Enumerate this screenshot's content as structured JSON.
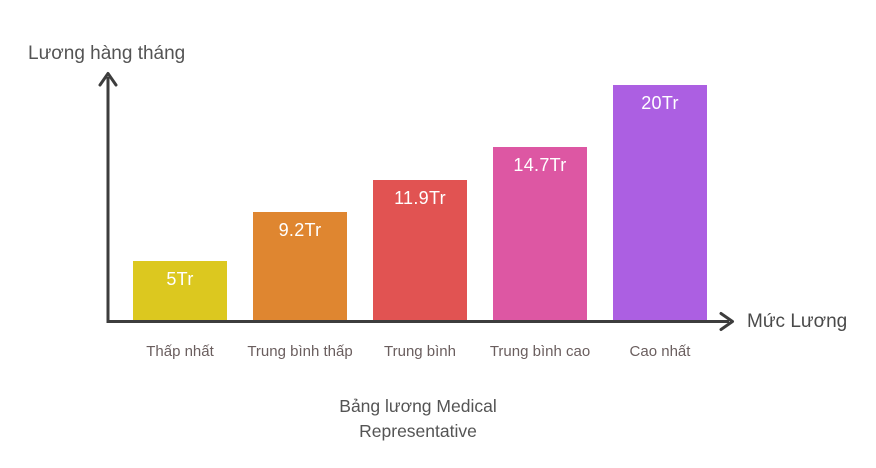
{
  "colors": {
    "background": "#ffffff",
    "axis": "#3d3d3d",
    "y_axis_label_text": "#545454",
    "x_axis_label_text": "#4a4a4a",
    "category_text": "#6a5e5e",
    "title_text": "#545454",
    "value_label_text": "#ffffff"
  },
  "chart_data": {
    "type": "bar",
    "title": "Bảng lương Medical Representative",
    "title_lines": [
      "Bảng lương Medical",
      "Representative"
    ],
    "ylabel": "Lương hàng tháng",
    "xlabel": "Mức Lương",
    "unit": "Tr",
    "categories": [
      "Thấp nhất",
      "Trung bình thấp",
      "Trung bình",
      "Trung bình cao",
      "Cao nhất"
    ],
    "values": [
      5,
      9.2,
      11.9,
      14.7,
      20
    ],
    "value_labels": [
      "5Tr",
      "9.2Tr",
      "11.9Tr",
      "14.7Tr",
      "20Tr"
    ],
    "bar_colors": [
      "#dcc81f",
      "#df8630",
      "#e15352",
      "#dd57a3",
      "#ac5fe2"
    ],
    "ylim": [
      0,
      21
    ],
    "grid": false,
    "legend": false,
    "axis_ticks": false
  }
}
